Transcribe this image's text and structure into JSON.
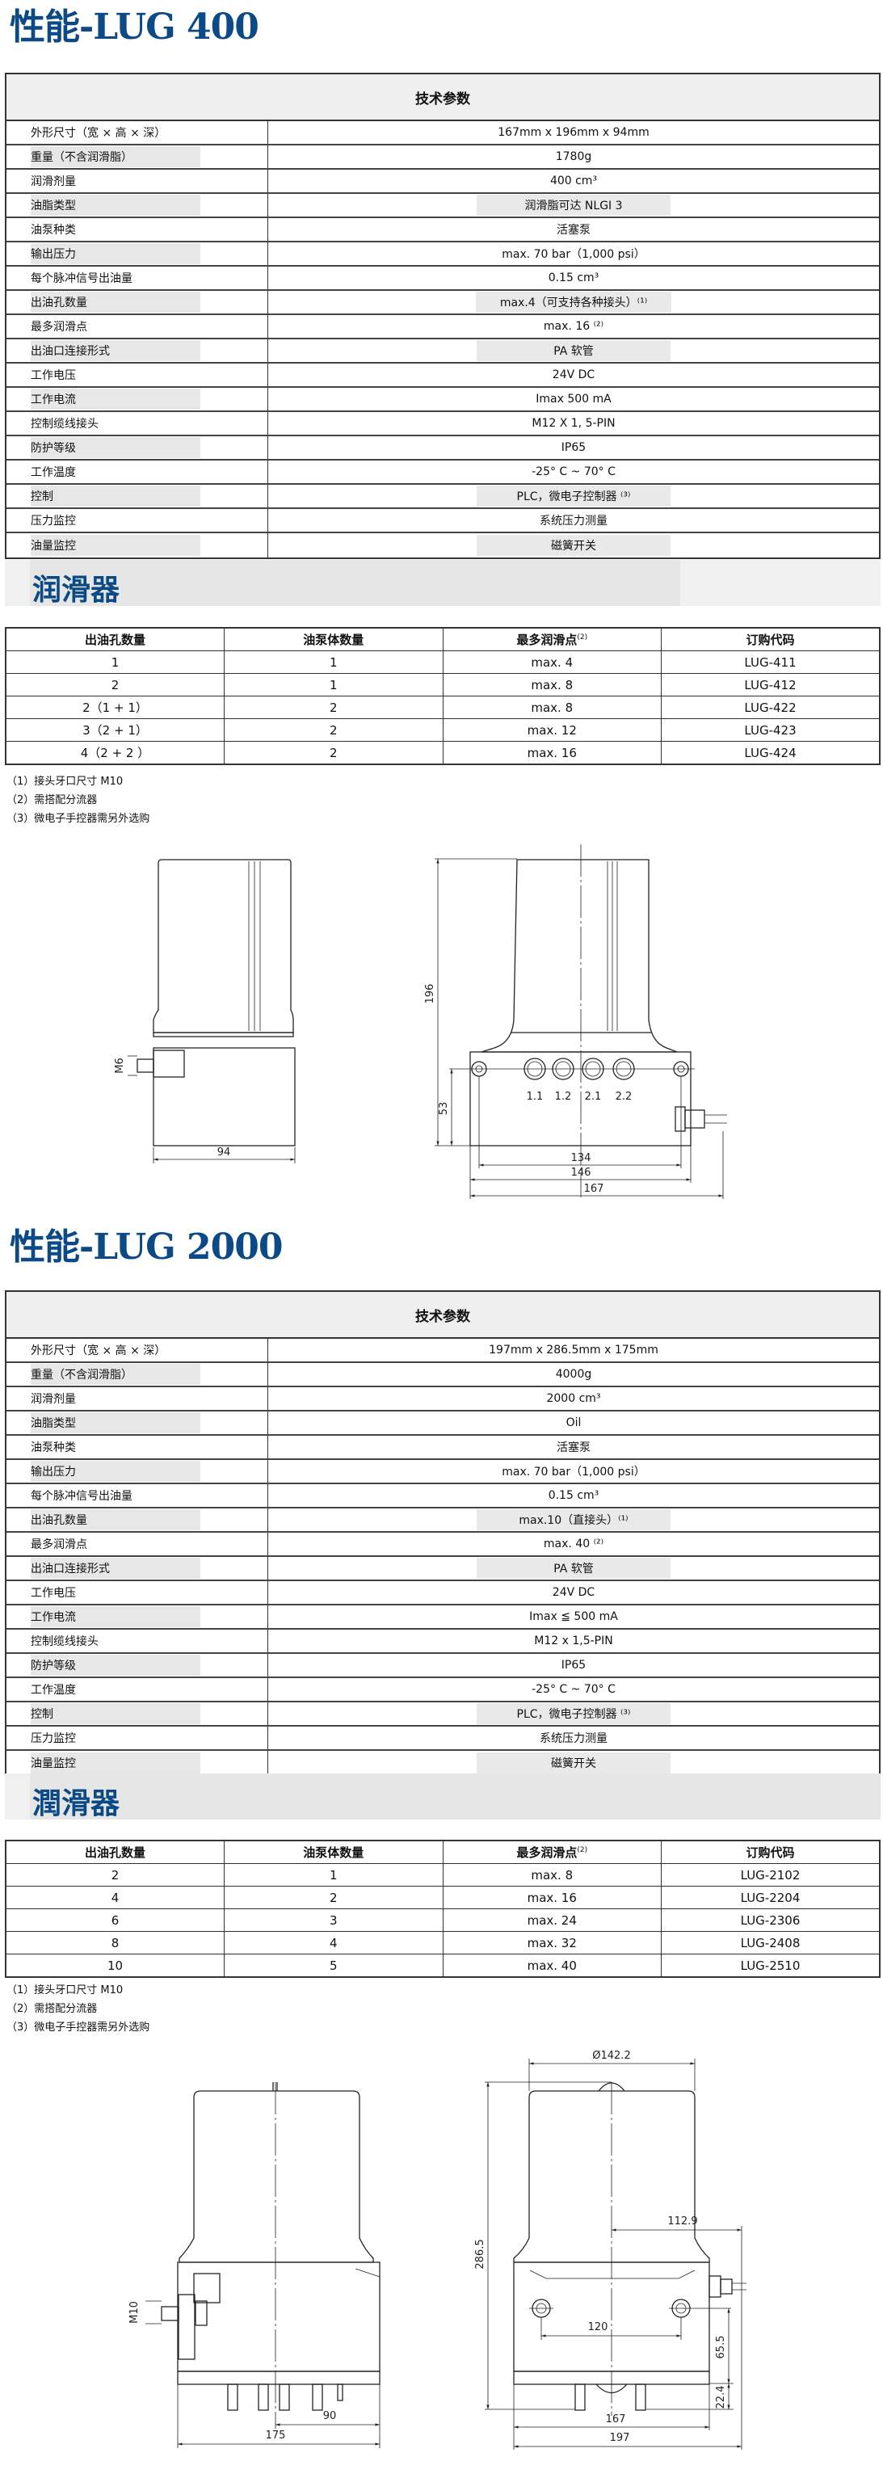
{
  "lug400": {
    "title": "性能-LUG 400",
    "spec_header": "技术参数",
    "specs": [
      {
        "label": "外形尺寸（宽 × 高 × 深）",
        "value": "167mm x 196mm x 94mm"
      },
      {
        "label": "重量（不含润滑脂）",
        "value": "1780g"
      },
      {
        "label": "润滑剂量",
        "value": "400 cm³"
      },
      {
        "label": "油脂类型",
        "value": "润滑脂可达 NLGI 3"
      },
      {
        "label": "油泵种类",
        "value": "活塞泵"
      },
      {
        "label": "输出压力",
        "value": "max. 70 bar（1,000 psi）"
      },
      {
        "label": "每个脉冲信号出油量",
        "value": "0.15 cm³"
      },
      {
        "label": "出油孔数量",
        "value": "max.4（可支持各种接头）⁽¹⁾"
      },
      {
        "label": "最多润滑点",
        "value": "max. 16 ⁽²⁾"
      },
      {
        "label": "出油口连接形式",
        "value": "PA 软管"
      },
      {
        "label": "工作电压",
        "value": "24V DC"
      },
      {
        "label": "工作电流",
        "value": "Imax 500 mA"
      },
      {
        "label": "控制缆线接头",
        "value": "M12 X 1, 5-PIN"
      },
      {
        "label": "防护等级",
        "value": "IP65"
      },
      {
        "label": "工作温度",
        "value": "-25° C ~ 70° C"
      },
      {
        "label": "控制",
        "value": "PLC，微电子控制器 ⁽³⁾"
      },
      {
        "label": "压力监控",
        "value": "系统压力测量"
      },
      {
        "label": "油量监控",
        "value": "磁簧开关"
      }
    ],
    "lubricator_heading": "润滑器",
    "lubricator_columns": [
      "出油孔数量",
      "油泵体数量",
      "最多润滑点",
      "订购代码"
    ],
    "lubricator_col3_sup": "(2)",
    "lubricator_rows": [
      [
        "1",
        "1",
        "max. 4",
        "LUG-411"
      ],
      [
        "2",
        "1",
        "max. 8",
        "LUG-412"
      ],
      [
        "2（1 + 1）",
        "2",
        "max. 8",
        "LUG-422"
      ],
      [
        "3（2 + 1）",
        "2",
        "max. 12",
        "LUG-423"
      ],
      [
        "4（2 + 2 ）",
        "2",
        "max. 16",
        "LUG-424"
      ]
    ],
    "notes": [
      "（1）接头牙口尺寸 M10",
      "（2）需搭配分流器",
      "（3）微电子手控器需另外选购"
    ],
    "drawing": {
      "m_label": "M6",
      "dim_depth": "94",
      "dim_height": "196",
      "dim_hole_height": "53",
      "dim_134": "134",
      "dim_146": "146",
      "dim_167": "167",
      "ports": [
        "1.1",
        "1.2",
        "2.1",
        "2.2"
      ]
    }
  },
  "lug2000": {
    "title": "性能-LUG 2000",
    "spec_header": "技术参数",
    "specs": [
      {
        "label": "外形尺寸（宽 × 高 × 深）",
        "value": "197mm x 286.5mm x 175mm"
      },
      {
        "label": "重量（不含润滑脂）",
        "value": "4000g"
      },
      {
        "label": "润滑剂量",
        "value": "2000 cm³"
      },
      {
        "label": "油脂类型",
        "value": "Oil"
      },
      {
        "label": "油泵种类",
        "value": "活塞泵"
      },
      {
        "label": "输出压力",
        "value": "max. 70 bar（1,000 psi）"
      },
      {
        "label": "每个脉冲信号出油量",
        "value": "0.15 cm³"
      },
      {
        "label": "出油孔数量",
        "value": "max.10（直接头）⁽¹⁾"
      },
      {
        "label": "最多润滑点",
        "value": "max. 40 ⁽²⁾"
      },
      {
        "label": "出油口连接形式",
        "value": "PA 软管"
      },
      {
        "label": "工作电压",
        "value": "24V DC"
      },
      {
        "label": "工作电流",
        "value": "Imax ≦ 500 mA"
      },
      {
        "label": "控制缆线接头",
        "value": "M12 x 1,5-PIN"
      },
      {
        "label": "防护等级",
        "value": "IP65"
      },
      {
        "label": "工作温度",
        "value": "-25° C ~ 70° C"
      },
      {
        "label": "控制",
        "value": "PLC，微电子控制器 ⁽³⁾"
      },
      {
        "label": "压力监控",
        "value": "系统压力测量"
      },
      {
        "label": "油量监控",
        "value": "磁簧开关"
      }
    ],
    "lubricator_heading": "潤滑器",
    "lubricator_columns": [
      "出油孔数量",
      "油泵体数量",
      "最多润滑点",
      "订购代码"
    ],
    "lubricator_col3_sup": "(2)",
    "lubricator_rows": [
      [
        "2",
        "1",
        "max. 8",
        "LUG-2102"
      ],
      [
        "4",
        "2",
        "max. 16",
        "LUG-2204"
      ],
      [
        "6",
        "3",
        "max. 24",
        "LUG-2306"
      ],
      [
        "8",
        "4",
        "max. 32",
        "LUG-2408"
      ],
      [
        "10",
        "5",
        "max. 40",
        "LUG-2510"
      ]
    ],
    "notes": [
      "（1）接头牙口尺寸 M10",
      "（2）需搭配分流器",
      "（3）微电子手控器需另外选购"
    ],
    "drawing": {
      "m_label": "M10",
      "dim_90": "90",
      "dim_175": "175",
      "dim_diameter": "Ø142.2",
      "dim_height": "286.5",
      "dim_112": "112.9",
      "dim_120": "120",
      "dim_65": "65.5",
      "dim_22": "22.4",
      "dim_167": "167",
      "dim_197": "197"
    }
  },
  "colors": {
    "title": "#0b4a86",
    "band": "#f0f0f0",
    "highlight": "#e7e7e7"
  }
}
